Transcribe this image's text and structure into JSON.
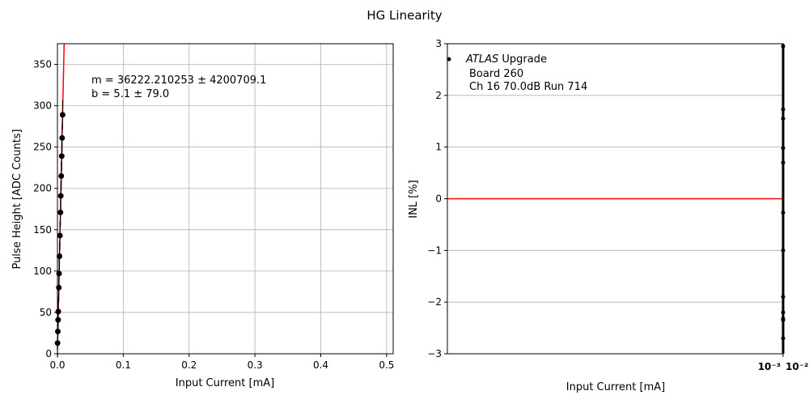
{
  "title": "HG Linearity",
  "chart_data": [
    {
      "type": "scatter",
      "xlabel": "Input Current [mA]",
      "ylabel": "Pulse Height [ADC Counts]",
      "xlim": [
        0,
        0.51
      ],
      "ylim": [
        0,
        375
      ],
      "xticks": [
        "0.0",
        "0.1",
        "0.2",
        "0.3",
        "0.4",
        "0.5"
      ],
      "yticks": [
        "0",
        "50",
        "100",
        "150",
        "200",
        "250",
        "300",
        "350"
      ],
      "grid": true,
      "annotation": [
        "m = 36222.210253 ± 4200709.1",
        "b = 5.1 ± 79.0"
      ],
      "points": {
        "x": [
          0.0002,
          0.0006,
          0.001,
          0.0013,
          0.0021,
          0.0025,
          0.0031,
          0.0038,
          0.0046,
          0.0051,
          0.0058,
          0.0065,
          0.0071,
          0.0078
        ],
        "y": [
          13,
          27,
          41,
          51,
          80,
          97,
          118,
          143,
          171,
          191,
          215,
          239,
          261,
          289
        ]
      },
      "fit": {
        "slope": 36222.210253,
        "intercept": 5.1,
        "color": "#ff0000"
      }
    },
    {
      "type": "scatter",
      "xlabel": "Input Current [mA]",
      "ylabel": "INL [%]",
      "ylim": [
        -3,
        3
      ],
      "yticks": [
        "−3",
        "−2",
        "−1",
        "0",
        "1",
        "2",
        "3"
      ],
      "xticks": [
        "10⁻³",
        "10⁻²"
      ],
      "xscale": "log",
      "grid": true,
      "annotation": [
        "ATLAS",
        " Upgrade",
        "Board 260",
        "Ch 16 70.0dB  Run 714"
      ],
      "points": {
        "y": [
          2.7,
          2.95,
          1.73,
          1.55,
          0.98,
          0.7,
          -0.27,
          -1.0,
          -1.9,
          -2.2,
          -2.32,
          -2.35,
          -2.7
        ]
      },
      "reference_line": {
        "y": 0,
        "color": "#ff0000"
      }
    }
  ]
}
